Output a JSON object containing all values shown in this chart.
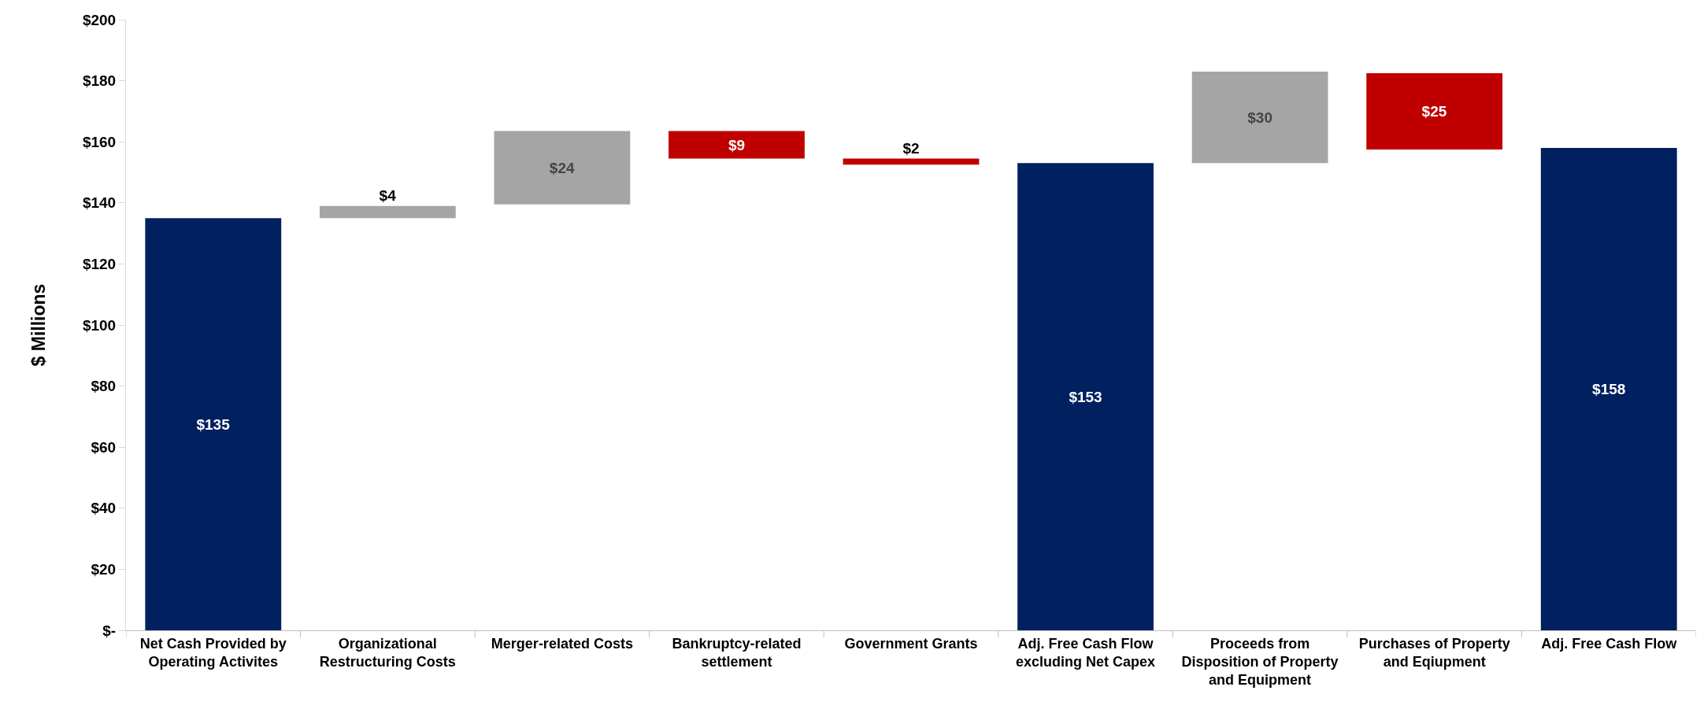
{
  "chart_data": {
    "type": "bar",
    "ylabel": "$ Millions",
    "categories": [
      "Net Cash Provided by Operating Activites",
      "Organizational Restructuring Costs",
      "Merger-related Costs",
      "Bankruptcy-related settlement",
      "Government Grants",
      "Adj. Free Cash Flow excluding Net Capex",
      "Proceeds from Disposition of Property and Equipment",
      "Purchases of Property and Eqiupment",
      "Adj. Free Cash Flow"
    ],
    "values": [
      135,
      4,
      24,
      9,
      2,
      153,
      30,
      25,
      158
    ],
    "base": [
      0,
      135,
      139.5,
      154.5,
      152.5,
      0,
      153,
      157.5,
      0
    ],
    "colors": [
      "#002060",
      "#a5a5a5",
      "#a5a5a5",
      "#c00000",
      "#c00000",
      "#002060",
      "#a5a5a5",
      "#c00000",
      "#002060"
    ],
    "value_labels": [
      "$135",
      "$4",
      "$24",
      "$9",
      "$2",
      "$153",
      "$30",
      "$25",
      "$158"
    ],
    "ylim": [
      0,
      200
    ],
    "yticks": [
      {
        "value": 0,
        "label": "$-"
      },
      {
        "value": 20,
        "label": "$20"
      },
      {
        "value": 40,
        "label": "$40"
      },
      {
        "value": 60,
        "label": "$60"
      },
      {
        "value": 80,
        "label": "$80"
      },
      {
        "value": 100,
        "label": "$100"
      },
      {
        "value": 120,
        "label": "$120"
      },
      {
        "value": 140,
        "label": "$140"
      },
      {
        "value": 160,
        "label": "$160"
      },
      {
        "value": 180,
        "label": "$180"
      },
      {
        "value": 200,
        "label": "$200"
      }
    ],
    "grid": false
  }
}
